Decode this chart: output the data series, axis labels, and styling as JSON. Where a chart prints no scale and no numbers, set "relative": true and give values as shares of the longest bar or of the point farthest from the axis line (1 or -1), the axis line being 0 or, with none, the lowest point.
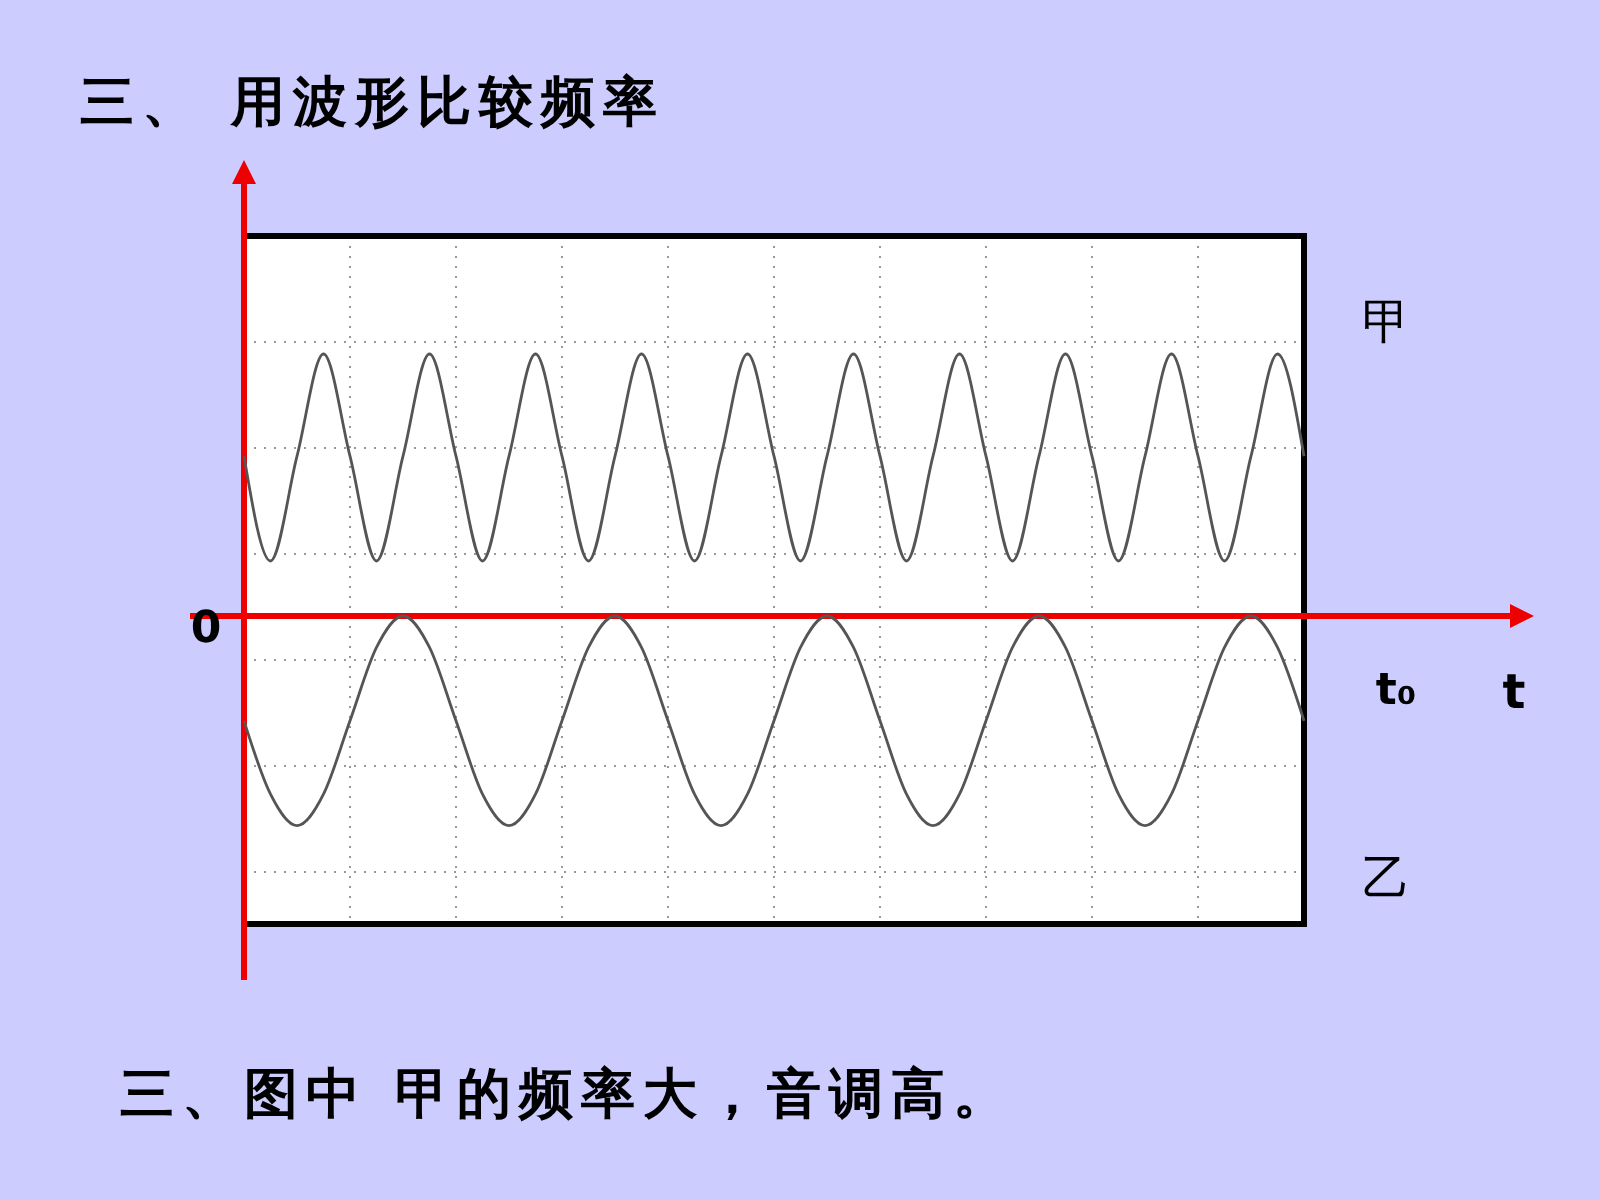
{
  "chart_data": {
    "type": "line",
    "title": "三、 用波形比较频率",
    "xlabel": "t",
    "relative": true,
    "grid": true,
    "ref_lines": [
      {
        "axis": "y",
        "value": 0,
        "color": "#ee0000"
      }
    ],
    "marker": "none",
    "line_style": "solid",
    "annotations": [
      "0",
      "t₀",
      "三、图中 甲的频率大，音调高。"
    ],
    "categories": [
      null,
      null,
      null,
      null,
      null,
      null,
      null,
      null,
      null,
      null,
      null,
      null,
      null,
      null,
      null,
      null,
      null,
      null,
      null,
      null,
      null,
      null,
      null,
      null,
      null,
      null,
      null,
      null,
      null,
      null,
      null,
      null,
      null,
      null,
      null,
      null,
      null,
      null,
      null,
      null,
      null
    ],
    "series": [
      {
        "name": "甲",
        "color": "#555555",
        "values": [
          0.61,
          0.21,
          0.61,
          1,
          0.61,
          0.21,
          0.61,
          1,
          0.61,
          0.21,
          0.61,
          1,
          0.61,
          0.21,
          0.61,
          1,
          0.61,
          0.21,
          0.61,
          1,
          0.61,
          0.21,
          0.61,
          1,
          0.61,
          0.21,
          0.61,
          1,
          0.61,
          0.21,
          0.61,
          1,
          0.61,
          0.21,
          0.61,
          1,
          0.61,
          0.21,
          0.61,
          1,
          0.61
        ]
      },
      {
        "name": "乙",
        "color": "#555555",
        "values": [
          -0.4,
          -0.68,
          -0.8,
          -0.68,
          -0.4,
          -0.12,
          0,
          -0.12,
          -0.4,
          -0.68,
          -0.8,
          -0.68,
          -0.4,
          -0.12,
          0,
          -0.12,
          -0.4,
          -0.68,
          -0.8,
          -0.68,
          -0.4,
          -0.12,
          0,
          -0.12,
          -0.4,
          -0.68,
          -0.8,
          -0.68,
          -0.4,
          -0.12,
          0,
          -0.12,
          -0.4,
          -0.68,
          -0.8,
          -0.68,
          -0.4,
          -0.12,
          0,
          -0.12,
          -0.4
        ]
      }
    ]
  }
}
